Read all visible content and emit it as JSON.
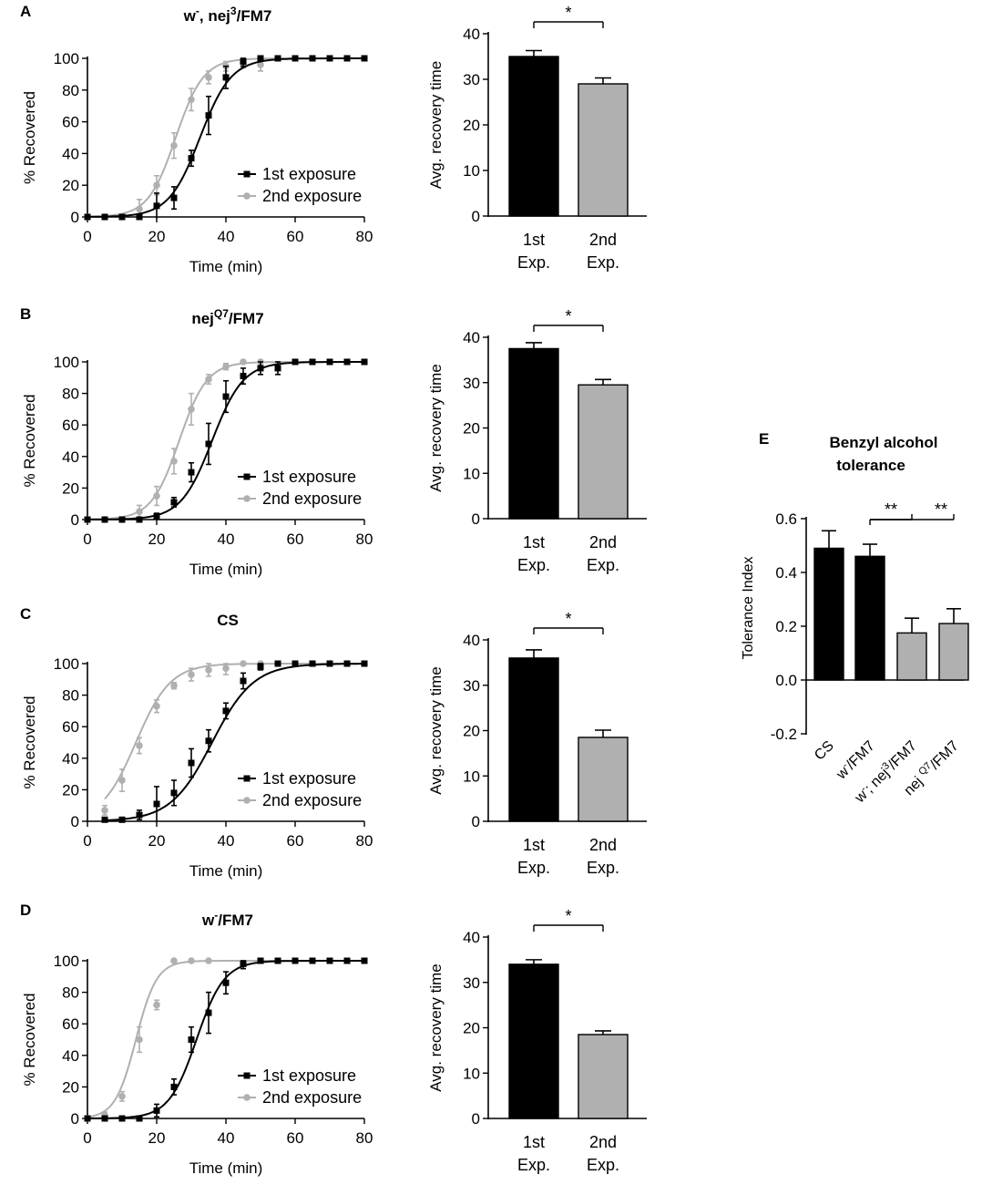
{
  "colors": {
    "first": "#000000",
    "second": "#b0b0b0",
    "axis": "#000000"
  },
  "chart_data": [
    {
      "panel": "A",
      "title_main": "w",
      "title_sup1": "-",
      "title_mid": ", nej",
      "title_sup2": "3",
      "title_end": "/FM7",
      "curves": {
        "type": "line",
        "xlabel": "Time (min)",
        "ylabel": "% Recovered",
        "xlim": [
          0,
          80
        ],
        "ylim": [
          0,
          100
        ],
        "xticks": [
          0,
          20,
          40,
          60,
          80
        ],
        "yticks": [
          0,
          20,
          40,
          60,
          80,
          100
        ],
        "legend": [
          "1st exposure",
          "2nd exposure"
        ],
        "legend_position": "center-right",
        "x": [
          0,
          5,
          10,
          15,
          20,
          25,
          30,
          35,
          40,
          45,
          50,
          55,
          60,
          65,
          70,
          75,
          80
        ],
        "series": [
          {
            "name": "1st exposure",
            "fit_mid": 32.5,
            "fit_slope": 4.5,
            "values": [
              0,
              0,
              0,
              0,
              7,
              12,
              37,
              64,
              88,
              98,
              100,
              100,
              100,
              100,
              100,
              100,
              100
            ],
            "errors": [
              0,
              0,
              0,
              0,
              8,
              7,
              5,
              12,
              7,
              3,
              0,
              0,
              0,
              0,
              0,
              0,
              0
            ]
          },
          {
            "name": "2nd exposure",
            "fit_mid": 25.5,
            "fit_slope": 4.0,
            "values": [
              0,
              0,
              0,
              5,
              20,
              45,
              74,
              88,
              95,
              97,
              96,
              null,
              null,
              null,
              null,
              null,
              null
            ],
            "errors": [
              0,
              0,
              0,
              6,
              6,
              8,
              7,
              4,
              3,
              3,
              4,
              0,
              0,
              0,
              0,
              0,
              0
            ]
          }
        ]
      },
      "bars": {
        "type": "bar",
        "ylabel": "Avg. recovery time",
        "categories": [
          "1st Exp.",
          "2nd Exp."
        ],
        "values": [
          35,
          29
        ],
        "errors": [
          1.3,
          1.3
        ],
        "ylim": [
          0,
          40
        ],
        "yticks": [
          0,
          10,
          20,
          30,
          40
        ],
        "significance": "*"
      }
    },
    {
      "panel": "B",
      "title_main": "nej",
      "title_sup1": "Q7",
      "title_mid": "",
      "title_sup2": "",
      "title_end": "/FM7",
      "curves": {
        "type": "line",
        "xlabel": "Time (min)",
        "ylabel": "% Recovered",
        "xlim": [
          0,
          80
        ],
        "ylim": [
          0,
          100
        ],
        "xticks": [
          0,
          20,
          40,
          60,
          80
        ],
        "yticks": [
          0,
          20,
          40,
          60,
          80,
          100
        ],
        "legend": [
          "1st exposure",
          "2nd exposure"
        ],
        "legend_position": "center-right",
        "x": [
          0,
          5,
          10,
          15,
          20,
          25,
          30,
          35,
          40,
          45,
          50,
          55,
          60,
          65,
          70,
          75,
          80
        ],
        "series": [
          {
            "name": "1st exposure",
            "fit_mid": 36,
            "fit_slope": 4.5,
            "values": [
              0,
              0,
              0,
              0,
              2,
              11,
              30,
              48,
              78,
              91,
              96,
              96,
              100,
              100,
              100,
              100,
              100
            ],
            "errors": [
              0,
              0,
              0,
              0,
              2,
              3,
              6,
              13,
              10,
              5,
              4,
              4,
              0,
              0,
              0,
              0,
              0
            ]
          },
          {
            "name": "2nd exposure",
            "fit_mid": 26.5,
            "fit_slope": 4.0,
            "values": [
              0,
              0,
              0,
              5,
              15,
              37,
              70,
              89,
              97,
              100,
              100,
              null,
              null,
              null,
              null,
              null,
              null
            ],
            "errors": [
              0,
              0,
              0,
              4,
              6,
              8,
              10,
              3,
              2,
              1,
              1,
              0,
              0,
              0,
              0,
              0,
              0
            ]
          }
        ]
      },
      "bars": {
        "type": "bar",
        "ylabel": "Avg. recovery time",
        "categories": [
          "1st Exp.",
          "2nd Exp."
        ],
        "values": [
          37.5,
          29.5
        ],
        "errors": [
          1.3,
          1.2
        ],
        "ylim": [
          0,
          40
        ],
        "yticks": [
          0,
          10,
          20,
          30,
          40
        ],
        "significance": "*"
      }
    },
    {
      "panel": "C",
      "title_main": "CS",
      "title_sup1": "",
      "title_mid": "",
      "title_sup2": "",
      "title_end": "",
      "curves": {
        "type": "line",
        "xlabel": "Time (min)",
        "ylabel": "% Recovered",
        "xlim": [
          0,
          80
        ],
        "ylim": [
          0,
          100
        ],
        "xticks": [
          0,
          20,
          40,
          60,
          80
        ],
        "yticks": [
          0,
          20,
          40,
          60,
          80,
          100
        ],
        "legend": [
          "1st exposure",
          "2nd exposure"
        ],
        "legend_position": "bottom-right",
        "x": [
          0,
          5,
          10,
          15,
          20,
          25,
          30,
          35,
          40,
          45,
          50,
          55,
          60,
          65,
          70,
          75,
          80
        ],
        "series": [
          {
            "name": "1st exposure",
            "fit_mid": 36,
            "fit_slope": 6.0,
            "values": [
              null,
              1,
              1,
              4,
              11,
              18,
              37,
              51,
              70,
              89,
              98,
              100,
              100,
              100,
              100,
              100,
              100
            ],
            "errors": [
              0,
              1,
              1,
              3,
              11,
              8,
              9,
              7,
              5,
              5,
              2,
              0,
              0,
              0,
              0,
              0,
              0
            ]
          },
          {
            "name": "2nd exposure",
            "fit_mid": 14,
            "fit_slope": 5.0,
            "values": [
              null,
              7,
              26,
              48,
              73,
              86,
              93,
              96,
              97,
              100,
              100,
              null,
              null,
              null,
              null,
              null,
              null
            ],
            "errors": [
              0,
              3,
              7,
              5,
              4,
              2,
              4,
              4,
              4,
              0,
              0,
              0,
              0,
              0,
              0,
              0,
              0
            ]
          }
        ]
      },
      "bars": {
        "type": "bar",
        "ylabel": "Avg. recovery time",
        "categories": [
          "1st Exp.",
          "2nd Exp."
        ],
        "values": [
          36,
          18.5
        ],
        "errors": [
          1.8,
          1.6
        ],
        "ylim": [
          0,
          40
        ],
        "yticks": [
          0,
          10,
          20,
          30,
          40
        ],
        "significance": "*"
      }
    },
    {
      "panel": "D",
      "title_main": "w",
      "title_sup1": "-",
      "title_mid": "",
      "title_sup2": "",
      "title_end": "/FM7",
      "curves": {
        "type": "line",
        "xlabel": "Time (min)",
        "ylabel": "% Recovered",
        "xlim": [
          0,
          80
        ],
        "ylim": [
          0,
          100
        ],
        "xticks": [
          0,
          20,
          40,
          60,
          80
        ],
        "yticks": [
          0,
          20,
          40,
          60,
          80,
          100
        ],
        "legend": [
          "1st exposure",
          "2nd exposure"
        ],
        "legend_position": "bottom-right",
        "x": [
          0,
          5,
          10,
          15,
          20,
          25,
          30,
          35,
          40,
          45,
          50,
          55,
          60,
          65,
          70,
          75,
          80
        ],
        "series": [
          {
            "name": "1st exposure",
            "fit_mid": 31.5,
            "fit_slope": 4.0,
            "values": [
              0,
              0,
              0,
              0,
              5,
              20,
              50,
              67,
              86,
              98,
              100,
              100,
              100,
              100,
              100,
              100,
              100
            ],
            "errors": [
              0,
              0,
              0,
              0,
              4,
              5,
              8,
              13,
              7,
              3,
              0,
              0,
              0,
              0,
              0,
              0,
              0
            ]
          },
          {
            "name": "2nd exposure",
            "fit_mid": 14,
            "fit_slope": 3.0,
            "values": [
              0,
              2,
              14,
              50,
              72,
              100,
              100,
              100,
              null,
              null,
              null,
              null,
              null,
              null,
              null,
              null,
              null
            ],
            "errors": [
              0,
              2,
              3,
              8,
              3,
              0,
              0,
              0,
              0,
              0,
              0,
              0,
              0,
              0,
              0,
              0,
              0
            ]
          }
        ]
      },
      "bars": {
        "type": "bar",
        "ylabel": "Avg. recovery time",
        "categories": [
          "1st Exp.",
          "2nd Exp."
        ],
        "values": [
          34,
          18.5
        ],
        "errors": [
          1.0,
          0.8
        ],
        "ylim": [
          0,
          40
        ],
        "yticks": [
          0,
          10,
          20,
          30,
          40
        ],
        "significance": "*"
      }
    },
    {
      "panel": "E",
      "type": "bar",
      "title": [
        "Benzyl alcohol",
        "tolerance"
      ],
      "ylabel": "Tolerance Index",
      "ylim": [
        -0.2,
        0.6
      ],
      "yticks": [
        "-0.2",
        "0.0",
        "0.2",
        "0.4",
        "0.6"
      ],
      "categories": [
        {
          "main": "CS",
          "sup": "",
          "rest": ""
        },
        {
          "main": "w",
          "sup": "-",
          "rest": "/FM7"
        },
        {
          "main": "w",
          "sup": "-",
          "rest": "; nej",
          "sup2": "3",
          "rest2": "/FM7"
        },
        {
          "main": "nej ",
          "sup": "Q7",
          "rest": "/FM7"
        }
      ],
      "values": [
        0.49,
        0.46,
        0.175,
        0.21
      ],
      "errors": [
        0.065,
        0.045,
        0.055,
        0.055
      ],
      "bar_colors": [
        "#000000",
        "#000000",
        "#b0b0b0",
        "#b0b0b0"
      ],
      "significance": [
        {
          "label": "**",
          "from": 1,
          "to": 2
        },
        {
          "label": "**",
          "from": 1,
          "to": 3
        }
      ]
    }
  ]
}
